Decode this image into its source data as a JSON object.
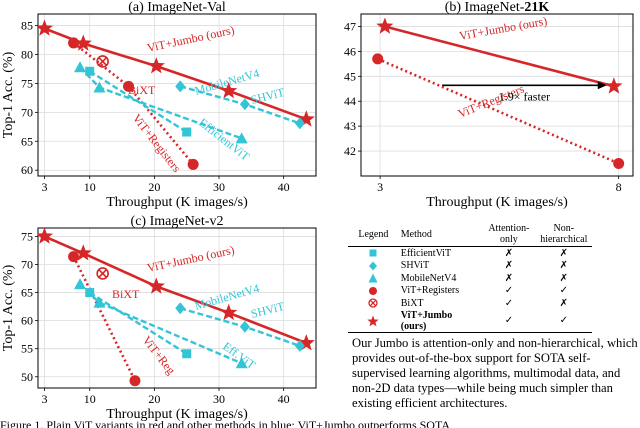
{
  "colors": {
    "efficientvit": "#33c5d6",
    "shvit": "#33c5d6",
    "mobilenetv4": "#33c5d6",
    "registers": "#d62728",
    "bixt": "#d62728",
    "jumbo": "#d62728"
  },
  "chart_data": [
    {
      "type": "scatter",
      "title": "(a) ImageNet-Val",
      "xlabel": "Throughput (K images/s)",
      "ylabel": "Top-1 Acc. (%)",
      "xlim": [
        2,
        45
      ],
      "ylim": [
        59,
        87
      ],
      "xticks": [
        3,
        10,
        20,
        30,
        40
      ],
      "yticks": [
        60,
        65,
        70,
        75,
        80,
        85
      ],
      "series": [
        {
          "name": "ViT+Jumbo (ours)",
          "marker": "star",
          "style": "solid",
          "x": [
            3.0,
            9.0,
            20.3,
            31.5,
            43.5
          ],
          "y": [
            84.5,
            81.9,
            78.0,
            73.7,
            68.8
          ]
        },
        {
          "name": "ViT+Registers",
          "marker": "circle",
          "style": "dotted",
          "x": [
            7.5,
            16.0,
            26.0
          ],
          "y": [
            82.0,
            74.5,
            61.0
          ]
        },
        {
          "name": "BiXT",
          "marker": "crossed-circle",
          "style": "none",
          "x": [
            12.0
          ],
          "y": [
            78.8
          ]
        },
        {
          "name": "EfficientViT",
          "marker": "square",
          "style": "dashed",
          "x": [
            10.0,
            25.0
          ],
          "y": [
            77.1,
            66.6
          ]
        },
        {
          "name": "MobileNetV4",
          "marker": "triangle",
          "style": "dashed",
          "x": [
            8.5,
            11.5,
            33.5
          ],
          "y": [
            77.8,
            74.3,
            65.5
          ]
        },
        {
          "name": "SHViT",
          "marker": "diamond",
          "style": "dashed",
          "x": [
            24.0,
            34.0,
            42.5
          ],
          "y": [
            74.5,
            71.4,
            68.1
          ]
        }
      ],
      "annotations": [
        "ViT+Jumbo (ours)",
        "MobileNetV4",
        "SHViT",
        "EfficientViT",
        "ViT+Registers",
        "BiXT"
      ]
    },
    {
      "type": "scatter",
      "title_prefix": "(b) ImageNet-",
      "title_bold": "21K",
      "xlabel": "Throughput (K images/s)",
      "ylabel": "",
      "xlim": [
        2.6,
        8.3
      ],
      "ylim": [
        41.0,
        47.5
      ],
      "xticks": [
        3,
        8
      ],
      "yticks": [
        42,
        43,
        44,
        45,
        46,
        47
      ],
      "series": [
        {
          "name": "ViT+Jumbo (ours)",
          "marker": "star",
          "style": "solid",
          "x": [
            3.1,
            7.9
          ],
          "y": [
            47.0,
            44.6
          ]
        },
        {
          "name": "ViT+Registers",
          "marker": "circle",
          "style": "dotted",
          "x": [
            2.95,
            8.0
          ],
          "y": [
            45.7,
            41.5
          ]
        }
      ],
      "annotations": [
        "ViT+Jumbo (ours)",
        "ViT+Registers",
        "1.9× faster"
      ]
    },
    {
      "type": "scatter",
      "title": "(c) ImageNet-v2",
      "xlabel": "Throughput (K images/s)",
      "ylabel": "Top-1 Acc. (%)",
      "xlim": [
        2,
        45
      ],
      "ylim": [
        48,
        76.5
      ],
      "xticks": [
        3,
        10,
        20,
        30,
        40
      ],
      "yticks": [
        50,
        55,
        60,
        65,
        70,
        75
      ],
      "series": [
        {
          "name": "ViT+Jumbo (ours)",
          "marker": "star",
          "style": "solid",
          "x": [
            3.0,
            9.0,
            20.3,
            31.5,
            43.5
          ],
          "y": [
            75.0,
            72.0,
            66.1,
            61.4,
            56.0
          ]
        },
        {
          "name": "ViT+Registers",
          "marker": "circle",
          "style": "dotted",
          "x": [
            7.5,
            17.0
          ],
          "y": [
            71.4,
            49.3
          ]
        },
        {
          "name": "BiXT",
          "marker": "crossed-circle",
          "style": "none",
          "x": [
            12.0
          ],
          "y": [
            68.4
          ]
        },
        {
          "name": "EfficientViT",
          "marker": "square",
          "style": "dashed",
          "x": [
            10.0,
            25.0
          ],
          "y": [
            65.0,
            54.1
          ]
        },
        {
          "name": "MobileNetV4",
          "marker": "triangle",
          "style": "dashed",
          "x": [
            8.5,
            11.5,
            33.5
          ],
          "y": [
            66.5,
            63.2,
            52.4
          ]
        },
        {
          "name": "SHViT",
          "marker": "diamond",
          "style": "dashed",
          "x": [
            24.0,
            34.0,
            42.5
          ],
          "y": [
            62.2,
            58.9,
            55.5
          ]
        }
      ],
      "annotations": [
        "ViT+Jumbo (ours)",
        "MobileNetV4",
        "SHViT",
        "Eff.ViT",
        "ViT+Reg",
        "BiXT"
      ]
    }
  ],
  "legend_table": {
    "headers": [
      "Legend",
      "Method",
      "Attention-only",
      "Non-hierarchical"
    ],
    "rows": [
      {
        "marker": "square",
        "method": "EfficientViT",
        "attention_only": "✗",
        "non_hierarchical": "✗",
        "bold": false
      },
      {
        "marker": "diamond",
        "method": "SHViT",
        "attention_only": "✗",
        "non_hierarchical": "✗",
        "bold": false
      },
      {
        "marker": "triangle",
        "method": "MobileNetV4",
        "attention_only": "✗",
        "non_hierarchical": "✗",
        "bold": false
      },
      {
        "marker": "circle",
        "method": "ViT+Registers",
        "attention_only": "✓",
        "non_hierarchical": "✓",
        "bold": false
      },
      {
        "marker": "crossed-circle",
        "method": "BiXT",
        "attention_only": "✓",
        "non_hierarchical": "✗",
        "bold": false
      },
      {
        "marker": "star",
        "method": "ViT+Jumbo (ours)",
        "attention_only": "✓",
        "non_hierarchical": "✓",
        "bold": true
      }
    ]
  },
  "description": "Our Jumbo is attention-only and non-hierarchical, which provides out-of-the-box support for SOTA self-supervised learning algorithms, multimodal data, and non-2D data types—while being much simpler than existing efficient architectures.",
  "caption": "Figure 1. Plain ViT variants in red and other methods in blue; ViT+Jumbo outperforms SOTA"
}
